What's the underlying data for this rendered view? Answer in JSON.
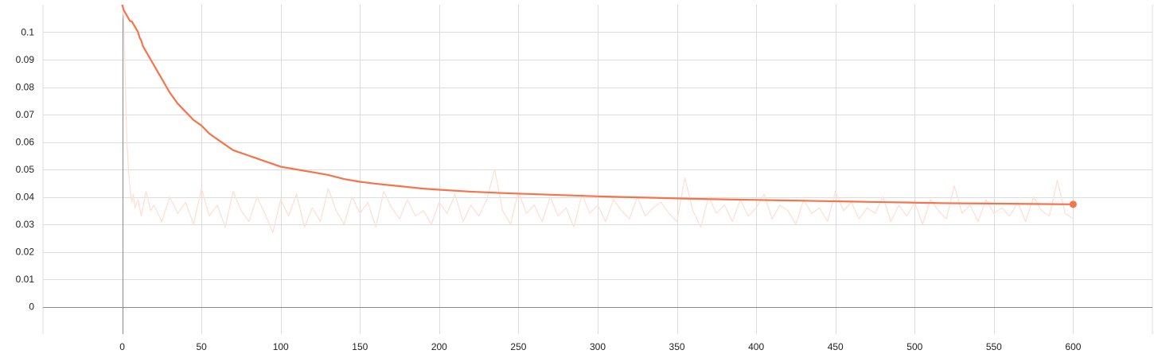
{
  "colors": {
    "series": "#f7734a",
    "series_faded": "#fde0d6",
    "grid": "#dcdcdc",
    "axis": "#8a8a8a",
    "text": "#222222"
  },
  "chart_data": {
    "type": "line",
    "title": "",
    "xlabel": "",
    "ylabel": "",
    "xlim": [
      -50,
      650
    ],
    "ylim": [
      -0.01,
      0.11
    ],
    "xticks": [
      0,
      50,
      100,
      150,
      200,
      250,
      300,
      350,
      400,
      450,
      500,
      550,
      600
    ],
    "xtick_labels": [
      "0",
      "50",
      "100",
      "150",
      "200",
      "250",
      "300",
      "350",
      "400",
      "450",
      "500",
      "550",
      "600"
    ],
    "yticks": [
      0,
      0.01,
      0.02,
      0.03,
      0.04,
      0.05,
      0.06,
      0.07,
      0.08,
      0.09,
      0.1
    ],
    "ytick_labels": [
      "0",
      "0.01",
      "0.02",
      "0.03",
      "0.04",
      "0.05",
      "0.06",
      "0.07",
      "0.08",
      "0.09",
      "0.1"
    ],
    "grid": true,
    "legend": "none",
    "series": [
      {
        "style": "faded",
        "color": "#fde0d6",
        "x": [
          0,
          1,
          2,
          3,
          4,
          5,
          6,
          7,
          8,
          10,
          12,
          15,
          18,
          20,
          25,
          30,
          35,
          40,
          45,
          50,
          55,
          60,
          65,
          70,
          75,
          80,
          85,
          90,
          95,
          100,
          105,
          110,
          115,
          120,
          125,
          130,
          135,
          140,
          145,
          150,
          155,
          160,
          165,
          170,
          175,
          180,
          185,
          190,
          195,
          200,
          205,
          210,
          215,
          220,
          225,
          230,
          235,
          240,
          245,
          250,
          255,
          260,
          265,
          270,
          275,
          280,
          285,
          290,
          295,
          300,
          305,
          310,
          315,
          320,
          325,
          330,
          335,
          340,
          345,
          350,
          355,
          360,
          365,
          370,
          375,
          380,
          385,
          390,
          395,
          400,
          405,
          410,
          415,
          420,
          425,
          430,
          435,
          440,
          445,
          450,
          455,
          460,
          465,
          470,
          475,
          480,
          485,
          490,
          495,
          500,
          505,
          510,
          515,
          520,
          525,
          530,
          535,
          540,
          545,
          550,
          555,
          560,
          565,
          570,
          575,
          580,
          585,
          590,
          595,
          600
        ],
        "y": [
          0.11,
          0.105,
          0.08,
          0.06,
          0.049,
          0.043,
          0.038,
          0.041,
          0.036,
          0.039,
          0.033,
          0.042,
          0.035,
          0.037,
          0.031,
          0.04,
          0.034,
          0.038,
          0.03,
          0.043,
          0.033,
          0.037,
          0.029,
          0.042,
          0.035,
          0.031,
          0.04,
          0.034,
          0.027,
          0.039,
          0.033,
          0.041,
          0.029,
          0.036,
          0.031,
          0.043,
          0.035,
          0.03,
          0.04,
          0.034,
          0.038,
          0.029,
          0.042,
          0.036,
          0.032,
          0.039,
          0.033,
          0.035,
          0.03,
          0.038,
          0.034,
          0.041,
          0.031,
          0.037,
          0.033,
          0.039,
          0.05,
          0.035,
          0.03,
          0.042,
          0.034,
          0.037,
          0.031,
          0.04,
          0.033,
          0.036,
          0.029,
          0.041,
          0.034,
          0.037,
          0.031,
          0.039,
          0.035,
          0.032,
          0.04,
          0.033,
          0.036,
          0.038,
          0.034,
          0.031,
          0.047,
          0.035,
          0.029,
          0.04,
          0.034,
          0.037,
          0.031,
          0.039,
          0.033,
          0.036,
          0.041,
          0.032,
          0.037,
          0.035,
          0.03,
          0.039,
          0.034,
          0.036,
          0.031,
          0.042,
          0.035,
          0.038,
          0.032,
          0.036,
          0.034,
          0.04,
          0.031,
          0.037,
          0.033,
          0.038,
          0.03,
          0.039,
          0.035,
          0.032,
          0.044,
          0.034,
          0.037,
          0.031,
          0.039,
          0.034,
          0.036,
          0.033,
          0.038,
          0.031,
          0.04,
          0.035,
          0.033,
          0.046,
          0.034,
          0.032
        ]
      },
      {
        "style": "smoothed",
        "color": "#f7734a",
        "x": [
          0,
          1,
          2,
          3,
          4,
          5,
          6,
          7,
          8,
          9,
          10,
          11,
          12,
          13,
          14,
          15,
          16,
          17,
          18,
          20,
          22,
          24,
          26,
          28,
          30,
          35,
          40,
          45,
          50,
          55,
          60,
          65,
          70,
          75,
          80,
          85,
          90,
          95,
          100,
          110,
          120,
          130,
          140,
          150,
          160,
          170,
          180,
          190,
          200,
          220,
          240,
          260,
          280,
          300,
          320,
          340,
          360,
          380,
          400,
          420,
          440,
          460,
          480,
          500,
          520,
          540,
          560,
          580,
          600
        ],
        "y": [
          0.11,
          0.108,
          0.107,
          0.106,
          0.105,
          0.104,
          0.104,
          0.103,
          0.102,
          0.101,
          0.1,
          0.098,
          0.097,
          0.095,
          0.094,
          0.093,
          0.092,
          0.091,
          0.09,
          0.088,
          0.086,
          0.084,
          0.082,
          0.08,
          0.078,
          0.074,
          0.071,
          0.068,
          0.066,
          0.063,
          0.061,
          0.059,
          0.057,
          0.056,
          0.055,
          0.054,
          0.053,
          0.052,
          0.051,
          0.05,
          0.049,
          0.048,
          0.0465,
          0.0455,
          0.0448,
          0.0442,
          0.0436,
          0.043,
          0.0426,
          0.0419,
          0.0414,
          0.041,
          0.0406,
          0.0402,
          0.0399,
          0.0396,
          0.0393,
          0.0391,
          0.0389,
          0.0387,
          0.0385,
          0.0383,
          0.0381,
          0.0379,
          0.0377,
          0.0376,
          0.0375,
          0.0374,
          0.0373
        ]
      }
    ]
  }
}
